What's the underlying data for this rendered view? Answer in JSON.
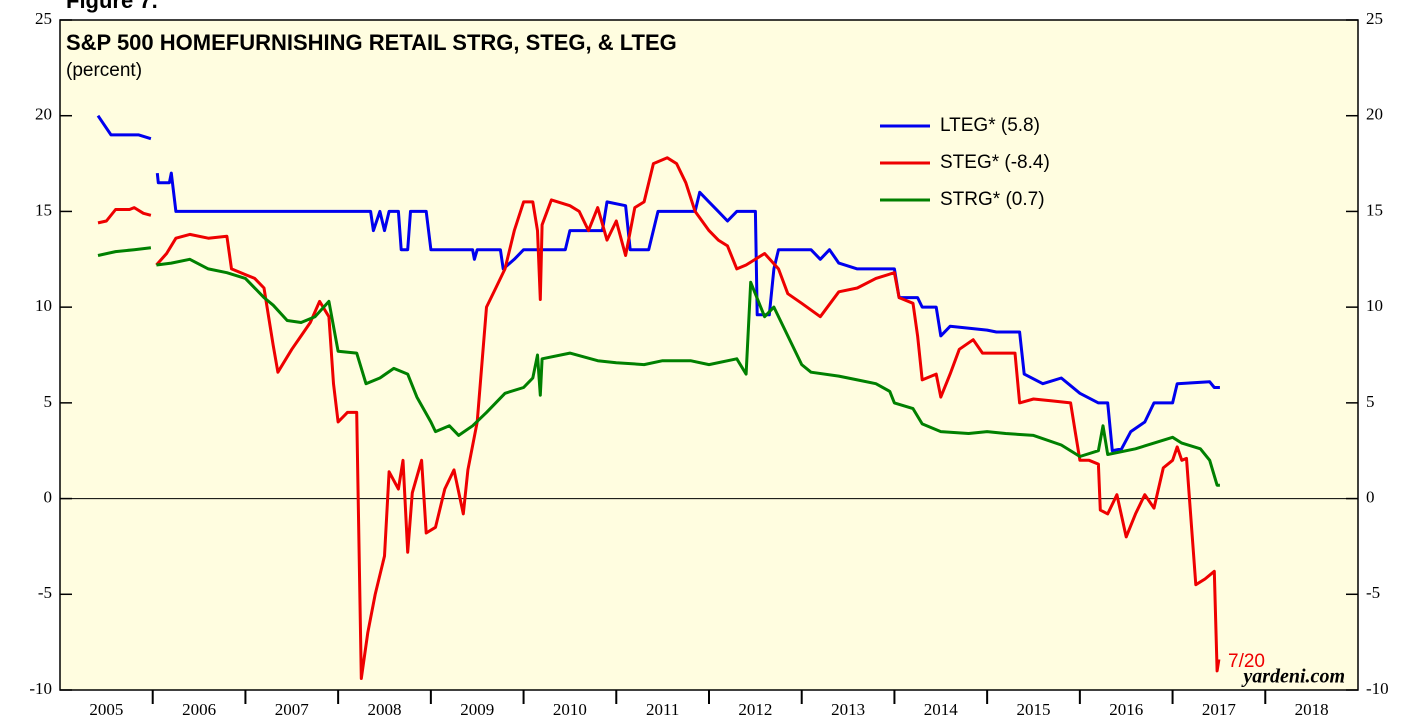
{
  "chart_data": {
    "type": "line",
    "figure_label": "Figure 7.",
    "title": "S&P 500 HOMEFURNISHING RETAIL STRG, STEG, & LTEG",
    "subtitle": "(percent)",
    "xlim": [
      2005,
      2019
    ],
    "xticks": [
      2005,
      2006,
      2007,
      2008,
      2009,
      2010,
      2011,
      2012,
      2013,
      2014,
      2015,
      2016,
      2017,
      2018
    ],
    "ylim": [
      -10,
      25
    ],
    "yticks": [
      -10,
      -5,
      0,
      5,
      10,
      15,
      20,
      25
    ],
    "annotations": [
      "7/20",
      "yardeni.com"
    ],
    "series": [
      {
        "name": "LTEG* (5.8)",
        "color": "#0000ee",
        "x": [
          2005.41,
          2005.55,
          2005.85,
          2005.98,
          2006.0,
          2006.05,
          2006.06,
          2006.18,
          2006.2,
          2006.25,
          2008.35,
          2008.38,
          2008.45,
          2008.5,
          2008.55,
          2008.65,
          2008.68,
          2008.75,
          2008.78,
          2008.95,
          2009.0,
          2009.45,
          2009.47,
          2009.5,
          2009.75,
          2009.78,
          2009.9,
          2010.0,
          2010.45,
          2010.5,
          2010.85,
          2010.9,
          2011.1,
          2011.15,
          2011.35,
          2011.45,
          2011.85,
          2011.9,
          2012.0,
          2012.1,
          2012.2,
          2012.3,
          2012.5,
          2012.52,
          2012.65,
          2012.7,
          2012.75,
          2013.1,
          2013.2,
          2013.3,
          2013.4,
          2013.6,
          2014.0,
          2014.05,
          2014.25,
          2014.3,
          2014.45,
          2014.5,
          2014.6,
          2015.0,
          2015.1,
          2015.35,
          2015.4,
          2015.6,
          2015.8,
          2016.0,
          2016.2,
          2016.3,
          2016.35,
          2016.45,
          2016.55,
          2016.7,
          2016.8,
          2017.0,
          2017.05,
          2017.4,
          2017.45,
          2017.51
        ],
        "values": [
          20,
          19,
          19,
          18.8,
          null,
          17,
          16.5,
          16.5,
          17,
          15,
          15,
          14,
          15,
          14,
          15,
          15,
          13,
          13,
          15,
          15,
          13,
          13,
          12.5,
          13,
          13,
          12,
          12.5,
          13,
          13,
          14,
          14,
          15.5,
          15.3,
          13,
          13,
          15,
          15,
          16,
          15.5,
          15,
          14.5,
          15,
          15,
          9.6,
          9.6,
          12,
          13,
          13,
          12.5,
          13,
          12.3,
          12,
          12,
          10.5,
          10.5,
          10,
          10,
          8.5,
          9,
          8.8,
          8.7,
          8.7,
          6.5,
          6,
          6.3,
          5.5,
          5,
          5,
          2.5,
          2.6,
          3.5,
          4,
          5,
          5,
          6,
          6.1,
          5.8,
          5.8
        ]
      },
      {
        "name": "STEG* (-8.4)",
        "color": "#ee0000",
        "x": [
          2005.41,
          2005.5,
          2005.6,
          2005.75,
          2005.8,
          2005.9,
          2005.98,
          2006.0,
          2006.04,
          2006.15,
          2006.25,
          2006.4,
          2006.6,
          2006.8,
          2006.85,
          2007.0,
          2007.1,
          2007.2,
          2007.3,
          2007.35,
          2007.5,
          2007.6,
          2007.7,
          2007.8,
          2007.9,
          2007.95,
          2008.0,
          2008.1,
          2008.2,
          2008.25,
          2008.32,
          2008.4,
          2008.5,
          2008.55,
          2008.65,
          2008.7,
          2008.75,
          2008.8,
          2008.9,
          2008.95,
          2009.05,
          2009.15,
          2009.25,
          2009.35,
          2009.4,
          2009.5,
          2009.6,
          2009.7,
          2009.8,
          2009.9,
          2010.0,
          2010.1,
          2010.15,
          2010.18,
          2010.2,
          2010.3,
          2010.5,
          2010.6,
          2010.7,
          2010.8,
          2010.9,
          2011.0,
          2011.1,
          2011.2,
          2011.3,
          2011.4,
          2011.55,
          2011.65,
          2011.75,
          2011.85,
          2012.0,
          2012.1,
          2012.2,
          2012.3,
          2012.4,
          2012.6,
          2012.75,
          2012.85,
          2013.0,
          2013.2,
          2013.4,
          2013.6,
          2013.8,
          2014.0,
          2014.05,
          2014.2,
          2014.25,
          2014.3,
          2014.45,
          2014.5,
          2014.6,
          2014.7,
          2014.85,
          2014.95,
          2015.3,
          2015.35,
          2015.5,
          2015.7,
          2015.9,
          2015.95,
          2016.0,
          2016.1,
          2016.2,
          2016.22,
          2016.3,
          2016.4,
          2016.5,
          2016.6,
          2016.7,
          2016.8,
          2016.9,
          2017.0,
          2017.05,
          2017.1,
          2017.15,
          2017.25,
          2017.35,
          2017.45,
          2017.48,
          2017.5
        ],
        "values": [
          14.4,
          14.5,
          15.1,
          15.1,
          15.2,
          14.9,
          14.8,
          null,
          12.2,
          12.8,
          13.6,
          13.8,
          13.6,
          13.7,
          12,
          11.7,
          11.5,
          11,
          8,
          6.6,
          7.8,
          8.5,
          9.2,
          10.3,
          9.5,
          6,
          4,
          4.5,
          4.5,
          -9.4,
          -7,
          -5,
          -3,
          1.4,
          0.5,
          2,
          -2.8,
          0.3,
          2,
          -1.8,
          -1.5,
          0.5,
          1.5,
          -0.8,
          1.5,
          4,
          10,
          11,
          12,
          14,
          15.5,
          15.5,
          14,
          10.4,
          14.3,
          15.6,
          15.3,
          15,
          14,
          15.2,
          13.5,
          14.5,
          12.7,
          15.2,
          15.5,
          17.5,
          17.8,
          17.5,
          16.5,
          15,
          14,
          13.5,
          13.2,
          12,
          12.2,
          12.8,
          12,
          10.7,
          10.2,
          9.5,
          10.8,
          11,
          11.5,
          11.8,
          10.5,
          10.2,
          8.5,
          6.2,
          6.5,
          5.3,
          6.5,
          7.8,
          8.3,
          7.6,
          7.6,
          5,
          5.2,
          5.1,
          5,
          3.5,
          2,
          2,
          1.8,
          -0.6,
          -0.8,
          0.2,
          -2,
          -0.8,
          0.2,
          -0.5,
          1.6,
          2,
          2.7,
          2,
          2.1,
          -4.5,
          -4.2,
          -3.8,
          -9,
          -8.4
        ]
      },
      {
        "name": "STRG* (0.7)",
        "color": "#008000",
        "x": [
          2005.41,
          2005.6,
          2005.8,
          2005.98,
          2006.0,
          2006.04,
          2006.2,
          2006.4,
          2006.6,
          2006.8,
          2007.0,
          2007.2,
          2007.3,
          2007.45,
          2007.6,
          2007.75,
          2007.9,
          2008.0,
          2008.2,
          2008.3,
          2008.45,
          2008.6,
          2008.75,
          2008.85,
          2009.0,
          2009.05,
          2009.2,
          2009.3,
          2009.45,
          2009.6,
          2009.8,
          2010.0,
          2010.1,
          2010.15,
          2010.18,
          2010.2,
          2010.5,
          2010.8,
          2011.0,
          2011.3,
          2011.5,
          2011.8,
          2012.0,
          2012.3,
          2012.4,
          2012.45,
          2012.6,
          2012.7,
          2012.85,
          2013.0,
          2013.1,
          2013.4,
          2013.6,
          2013.8,
          2013.95,
          2014.0,
          2014.2,
          2014.3,
          2014.5,
          2014.8,
          2015.0,
          2015.2,
          2015.5,
          2015.8,
          2016.0,
          2016.2,
          2016.25,
          2016.3,
          2016.6,
          2016.8,
          2017.0,
          2017.1,
          2017.3,
          2017.4,
          2017.48,
          2017.51
        ],
        "values": [
          12.7,
          12.9,
          13,
          13.1,
          null,
          12.2,
          12.3,
          12.5,
          12,
          11.8,
          11.5,
          10.5,
          10.1,
          9.3,
          9.2,
          9.5,
          10.3,
          7.7,
          7.6,
          6,
          6.3,
          6.8,
          6.5,
          5.3,
          4,
          3.5,
          3.8,
          3.3,
          3.8,
          4.5,
          5.5,
          5.8,
          6.3,
          7.5,
          5.4,
          7.3,
          7.6,
          7.2,
          7.1,
          7.0,
          7.2,
          7.2,
          7.0,
          7.3,
          6.5,
          11.3,
          9.5,
          10,
          8.5,
          7,
          6.6,
          6.4,
          6.2,
          6,
          5.6,
          5,
          4.7,
          3.9,
          3.5,
          3.4,
          3.5,
          3.4,
          3.3,
          2.8,
          2.2,
          2.5,
          3.8,
          2.3,
          2.6,
          2.9,
          3.2,
          2.9,
          2.6,
          2.0,
          0.7,
          0.7
        ]
      }
    ]
  }
}
